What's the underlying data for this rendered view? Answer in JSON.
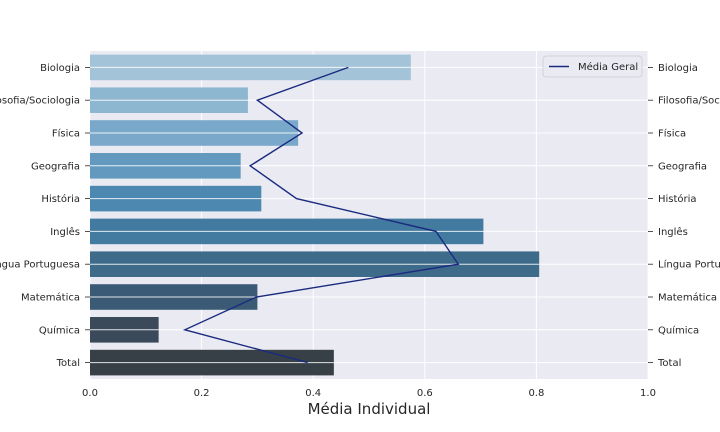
{
  "chart_data": {
    "type": "bar",
    "orientation": "horizontal",
    "categories": [
      "Biologia",
      "Filosofia/Sociologia",
      "Física",
      "Geografia",
      "História",
      "Inglês",
      "Língua Portuguesa",
      "Matemática",
      "Química",
      "Total"
    ],
    "bar_values": [
      0.575,
      0.283,
      0.373,
      0.27,
      0.307,
      0.705,
      0.805,
      0.3,
      0.123,
      0.437
    ],
    "bar_colors": [
      "#a3c4d8",
      "#8db6d1",
      "#79a8ca",
      "#6399be",
      "#4d88b0",
      "#437a9f",
      "#3f6b8b",
      "#3b5a75",
      "#3a4a5a",
      "#373f47"
    ],
    "line_series": {
      "name": "Média Geral",
      "values": [
        0.463,
        0.3,
        0.38,
        0.287,
        0.37,
        0.62,
        0.66,
        0.298,
        0.17,
        0.39
      ],
      "color": "#1a2b80"
    },
    "xlabel": "Média Individual",
    "xlim": [
      0,
      1.0
    ],
    "xticks": [
      "0.0",
      "0.2",
      "0.4",
      "0.6",
      "0.8",
      "1.0"
    ],
    "grid": true,
    "legend": "top-right",
    "background": "#eaeaf2"
  }
}
